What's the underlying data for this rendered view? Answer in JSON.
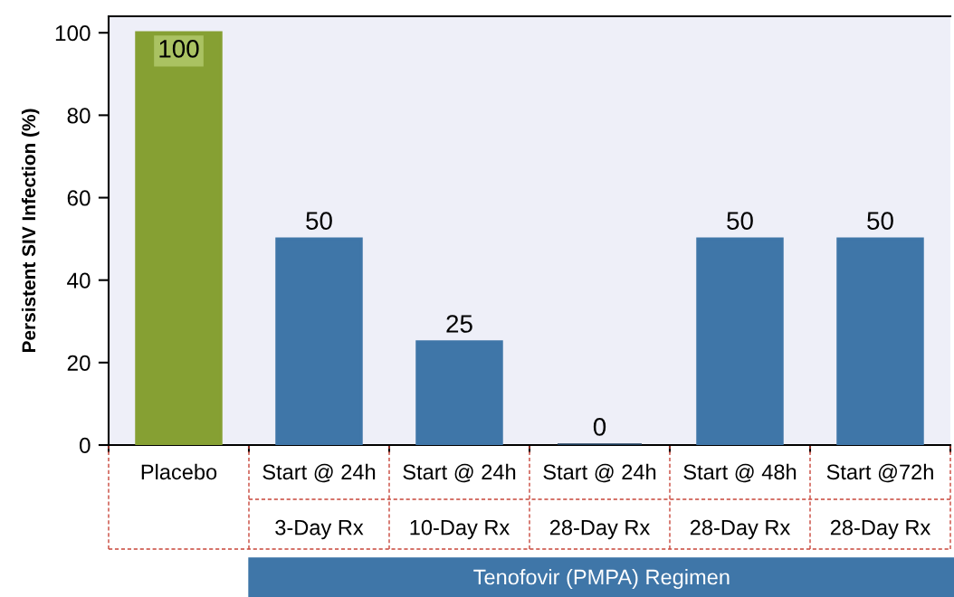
{
  "chart_data": {
    "type": "bar",
    "ylabel": "Persistent SIV Infection (%)",
    "categories": [
      "Placebo",
      "Start @ 24h\n3-Day Rx",
      "Start @ 24h\n10-Day Rx",
      "Start @ 24h\n28-Day Rx",
      "Start @ 48h\n28-Day Rx",
      "Start @72h\n28-Day Rx"
    ],
    "values": [
      100,
      50,
      25,
      0,
      50,
      50
    ],
    "colors": [
      "#86a033",
      "#3f76a8",
      "#3f76a8",
      "#1b3a57",
      "#3f76a8",
      "#3f76a8"
    ],
    "ylim": [
      0,
      104
    ],
    "yticks": [
      0,
      20,
      40,
      60,
      80,
      100
    ],
    "data_labels": true,
    "annotations": [
      "Tenofovir (PMPA) Regimen"
    ]
  }
}
